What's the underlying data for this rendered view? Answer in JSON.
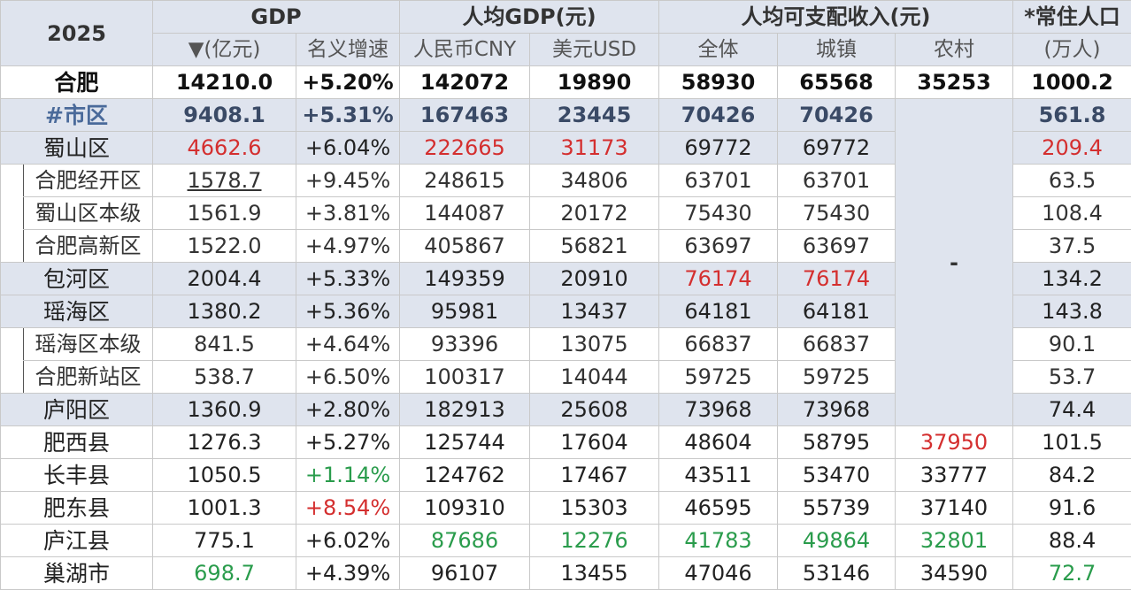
{
  "header": {
    "year": "2025",
    "group_gdp": "GDP",
    "group_per_capita_gdp": "人均GDP(元)",
    "group_income": "人均可支配收入(元)",
    "group_population": "*常住人口",
    "col_gdp": "▼(亿元)",
    "col_growth": "名义增速",
    "col_cny": "人民币CNY",
    "col_usd": "美元USD",
    "col_income_all": "全体",
    "col_income_urban": "城镇",
    "col_income_rural": "农村",
    "col_population": "(万人)"
  },
  "merged_rural_value": "-",
  "colors": {
    "header_bg": "#dfe4ee",
    "red": "#d42f2f",
    "green": "#2a9c4c"
  },
  "rows": [
    {
      "name": "合肥",
      "gdp": "14210.0",
      "growth": "+5.20%",
      "cny": "142072",
      "usd": "19890",
      "all": "58930",
      "urban": "65568",
      "rural": "35253",
      "pop": "1000.2"
    },
    {
      "name": "#市区",
      "gdp": "9408.1",
      "growth": "+5.31%",
      "cny": "167463",
      "usd": "23445",
      "all": "70426",
      "urban": "70426",
      "pop": "561.8"
    },
    {
      "name": "蜀山区",
      "gdp": "4662.6",
      "growth": "+6.04%",
      "cny": "222665",
      "usd": "31173",
      "all": "69772",
      "urban": "69772",
      "pop": "209.4"
    },
    {
      "name": "合肥经开区",
      "gdp": "1578.7",
      "growth": "+9.45%",
      "cny": "248615",
      "usd": "34806",
      "all": "63701",
      "urban": "63701",
      "pop": "63.5"
    },
    {
      "name": "蜀山区本级",
      "gdp": "1561.9",
      "growth": "+3.81%",
      "cny": "144087",
      "usd": "20172",
      "all": "75430",
      "urban": "75430",
      "pop": "108.4"
    },
    {
      "name": "合肥高新区",
      "gdp": "1522.0",
      "growth": "+4.97%",
      "cny": "405867",
      "usd": "56821",
      "all": "63697",
      "urban": "63697",
      "pop": "37.5"
    },
    {
      "name": "包河区",
      "gdp": "2004.4",
      "growth": "+5.33%",
      "cny": "149359",
      "usd": "20910",
      "all": "76174",
      "urban": "76174",
      "pop": "134.2"
    },
    {
      "name": "瑶海区",
      "gdp": "1380.2",
      "growth": "+5.36%",
      "cny": "95981",
      "usd": "13437",
      "all": "64181",
      "urban": "64181",
      "pop": "143.8"
    },
    {
      "name": "瑶海区本级",
      "gdp": "841.5",
      "growth": "+4.64%",
      "cny": "93396",
      "usd": "13075",
      "all": "66837",
      "urban": "66837",
      "pop": "90.1"
    },
    {
      "name": "合肥新站区",
      "gdp": "538.7",
      "growth": "+6.50%",
      "cny": "100317",
      "usd": "14044",
      "all": "59725",
      "urban": "59725",
      "pop": "53.7"
    },
    {
      "name": "庐阳区",
      "gdp": "1360.9",
      "growth": "+2.80%",
      "cny": "182913",
      "usd": "25608",
      "all": "73968",
      "urban": "73968",
      "pop": "74.4"
    },
    {
      "name": "肥西县",
      "gdp": "1276.3",
      "growth": "+5.27%",
      "cny": "125744",
      "usd": "17604",
      "all": "48604",
      "urban": "58795",
      "rural": "37950",
      "pop": "101.5"
    },
    {
      "name": "长丰县",
      "gdp": "1050.5",
      "growth": "+1.14%",
      "cny": "124762",
      "usd": "17467",
      "all": "43511",
      "urban": "53470",
      "rural": "33777",
      "pop": "84.2"
    },
    {
      "name": "肥东县",
      "gdp": "1001.3",
      "growth": "+8.54%",
      "cny": "109310",
      "usd": "15303",
      "all": "46595",
      "urban": "55739",
      "rural": "37140",
      "pop": "91.6"
    },
    {
      "name": "庐江县",
      "gdp": "775.1",
      "growth": "+6.02%",
      "cny": "87686",
      "usd": "12276",
      "all": "41783",
      "urban": "49864",
      "rural": "32801",
      "pop": "88.4"
    },
    {
      "name": "巢湖市",
      "gdp": "698.7",
      "growth": "+4.39%",
      "cny": "96107",
      "usd": "13455",
      "all": "47046",
      "urban": "53146",
      "rural": "34590",
      "pop": "72.7"
    }
  ]
}
